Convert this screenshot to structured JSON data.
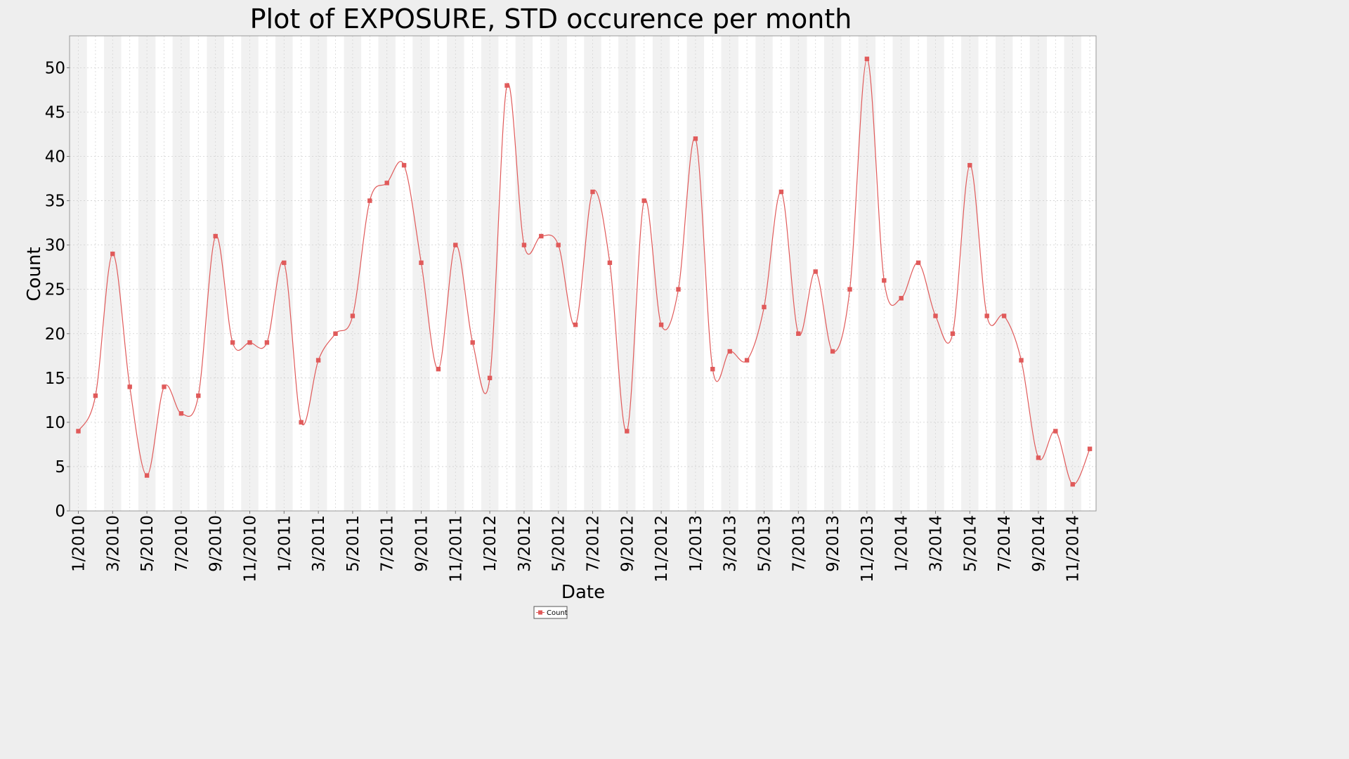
{
  "chart_data": {
    "type": "line",
    "title": "Plot of EXPOSURE, STD occurence per month",
    "xlabel": "Date",
    "ylabel": "Count",
    "ylim": [
      0,
      53.6
    ],
    "yticks": [
      0,
      5,
      10,
      15,
      20,
      25,
      30,
      35,
      40,
      45,
      50
    ],
    "xtick_labels": [
      "1/2010",
      "3/2010",
      "5/2010",
      "7/2010",
      "9/2010",
      "11/2010",
      "1/2011",
      "3/2011",
      "5/2011",
      "7/2011",
      "9/2011",
      "11/2011",
      "1/2012",
      "3/2012",
      "5/2012",
      "7/2012",
      "9/2012",
      "11/2012",
      "1/2013",
      "3/2013",
      "5/2013",
      "7/2013",
      "9/2013",
      "11/2013",
      "1/2014",
      "3/2014",
      "5/2014",
      "7/2014",
      "9/2014",
      "11/2014"
    ],
    "grid": true,
    "alternating_month_bands": true,
    "legend_position": "bottom-center",
    "series": [
      {
        "name": "Count",
        "color": "#e05a5a",
        "x": [
          "1/2010",
          "2/2010",
          "3/2010",
          "4/2010",
          "5/2010",
          "6/2010",
          "7/2010",
          "8/2010",
          "9/2010",
          "10/2010",
          "11/2010",
          "12/2010",
          "1/2011",
          "2/2011",
          "3/2011",
          "4/2011",
          "5/2011",
          "6/2011",
          "7/2011",
          "8/2011",
          "9/2011",
          "10/2011",
          "11/2011",
          "12/2011",
          "1/2012",
          "2/2012",
          "3/2012",
          "4/2012",
          "5/2012",
          "6/2012",
          "7/2012",
          "8/2012",
          "9/2012",
          "10/2012",
          "11/2012",
          "12/2012",
          "1/2013",
          "2/2013",
          "3/2013",
          "4/2013",
          "5/2013",
          "6/2013",
          "7/2013",
          "8/2013",
          "9/2013",
          "10/2013",
          "11/2013",
          "12/2013",
          "1/2014",
          "2/2014",
          "3/2014",
          "4/2014",
          "5/2014",
          "6/2014",
          "7/2014",
          "8/2014",
          "9/2014",
          "10/2014",
          "11/2014",
          "12/2014"
        ],
        "values": [
          9,
          13,
          29,
          14,
          4,
          14,
          11,
          13,
          31,
          19,
          19,
          19,
          28,
          10,
          17,
          20,
          22,
          35,
          37,
          39,
          28,
          16,
          30,
          19,
          15,
          48,
          30,
          31,
          30,
          21,
          36,
          28,
          9,
          35,
          21,
          25,
          42,
          16,
          18,
          17,
          23,
          36,
          20,
          27,
          18,
          25,
          51,
          26,
          24,
          28,
          22,
          20,
          39,
          22,
          22,
          17,
          6,
          9,
          3,
          7
        ]
      }
    ]
  }
}
